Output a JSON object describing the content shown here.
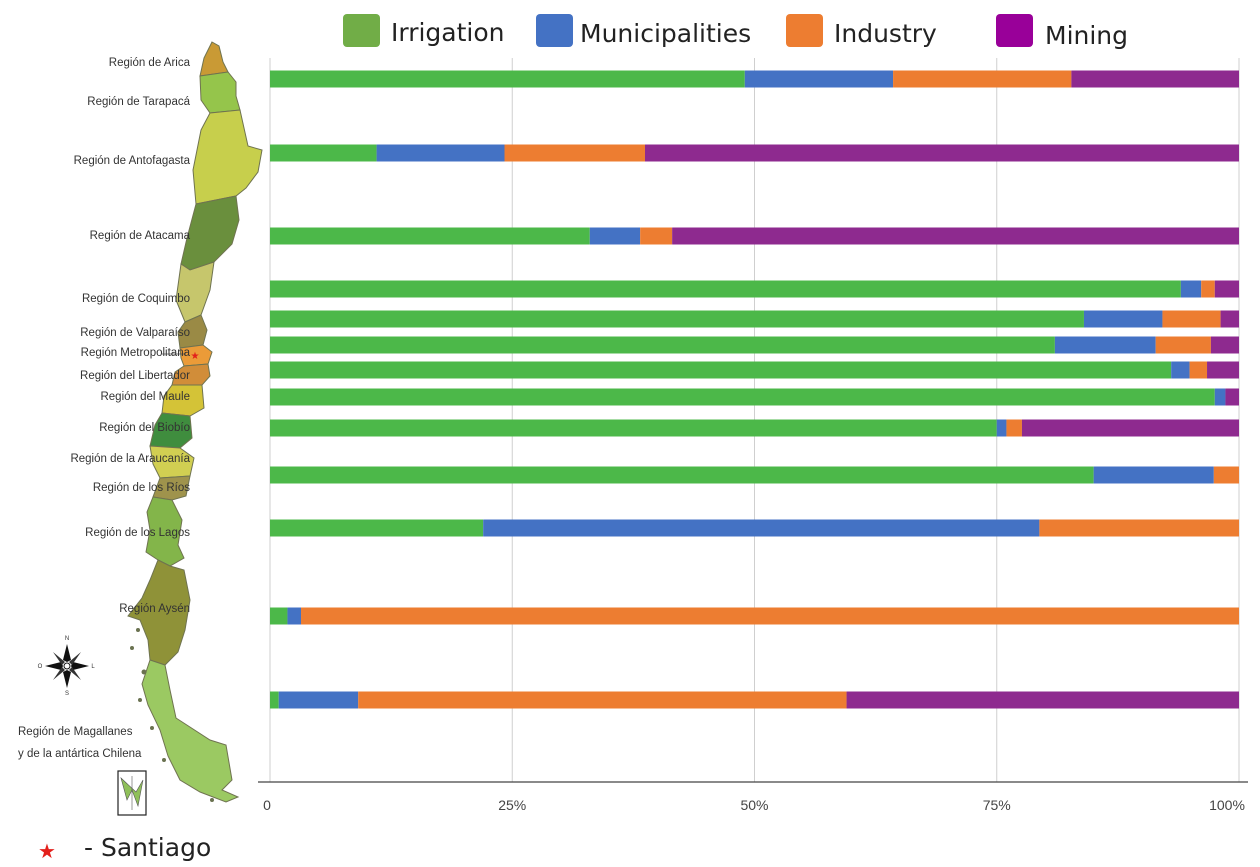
{
  "chart_data": {
    "type": "bar",
    "orientation": "horizontal",
    "stacked": true,
    "title": "",
    "xlabel": "",
    "ylabel": "",
    "xlim": [
      0,
      100
    ],
    "grid": true,
    "legend_position": "top",
    "x_tick_labels": [
      "0",
      "25%",
      "50%",
      "75%",
      "100%"
    ],
    "categories": [
      "Región de Arica",
      "Región de Tarapacá",
      "Región de Antofagasta",
      "Región de Atacama",
      "Región de Coquimbo",
      "Región de Valparaíso",
      "Región Metropolitana",
      "Región del Libertador",
      "Región del Maule",
      "Región del Biobío",
      "Región de la Araucanía",
      "Región de los Ríos",
      "Región de los Lagos",
      "Región Aysén",
      "Región de Magallanes",
      "y de la antártica Chilena"
    ],
    "bars": [
      {
        "region": "Región de Arica / Región de Tarapacá",
        "values": [
          49,
          15.3,
          18.4,
          17.3
        ]
      },
      {
        "region": "Región de Antofagasta",
        "values": [
          11,
          13.2,
          14.5,
          61.3
        ]
      },
      {
        "region": "Región de Atacama",
        "values": [
          33,
          5.2,
          3.3,
          58.5
        ]
      },
      {
        "region": "Región de Coquimbo",
        "values": [
          94,
          2.1,
          1.4,
          2.5
        ]
      },
      {
        "region": "Región de Valparaíso",
        "values": [
          84,
          8.1,
          6,
          1.9
        ]
      },
      {
        "region": "Región Metropolitana",
        "values": [
          81,
          10.4,
          5.7,
          2.9
        ]
      },
      {
        "region": "Región del Libertador",
        "values": [
          93,
          1.9,
          1.8,
          3.3
        ]
      },
      {
        "region": "Región del Maule",
        "values": [
          97.5,
          1.1,
          0,
          1.4
        ]
      },
      {
        "region": "Región del Biobío",
        "values": [
          75,
          1,
          1.6,
          22.4
        ]
      },
      {
        "region": "Región de la Araucanía / Región de los Ríos",
        "values": [
          85,
          12.4,
          2.6,
          0
        ]
      },
      {
        "region": "Región de los Lagos",
        "values": [
          22,
          57.4,
          20.6,
          0
        ]
      },
      {
        "region": "Región Aysén",
        "values": [
          1.8,
          1.4,
          96.8,
          0
        ]
      },
      {
        "region": "Región de Magallanes y de la antártica Chilena",
        "values": [
          0.9,
          8.2,
          50.4,
          40.5
        ]
      }
    ],
    "series": [
      {
        "name": "Irrigation",
        "color": "#4cb849",
        "legend_color": "#71ad47"
      },
      {
        "name": "Municipalities",
        "color": "#4472c4",
        "legend_color": "#4472c4"
      },
      {
        "name": "Industry",
        "color": "#ed7d31",
        "legend_color": "#ed7d31"
      },
      {
        "name": "Mining",
        "color": "#8e2a8f",
        "legend_color": "#990099"
      }
    ]
  },
  "note": {
    "symbol": "★",
    "label": "- Santiago",
    "color": "#e3201b"
  },
  "map": {
    "compass_icon": "compass-rose-icon",
    "inset_icon": "antarctic-inset-icon",
    "compass_labels": [
      "N",
      "O",
      "L",
      "S"
    ]
  }
}
